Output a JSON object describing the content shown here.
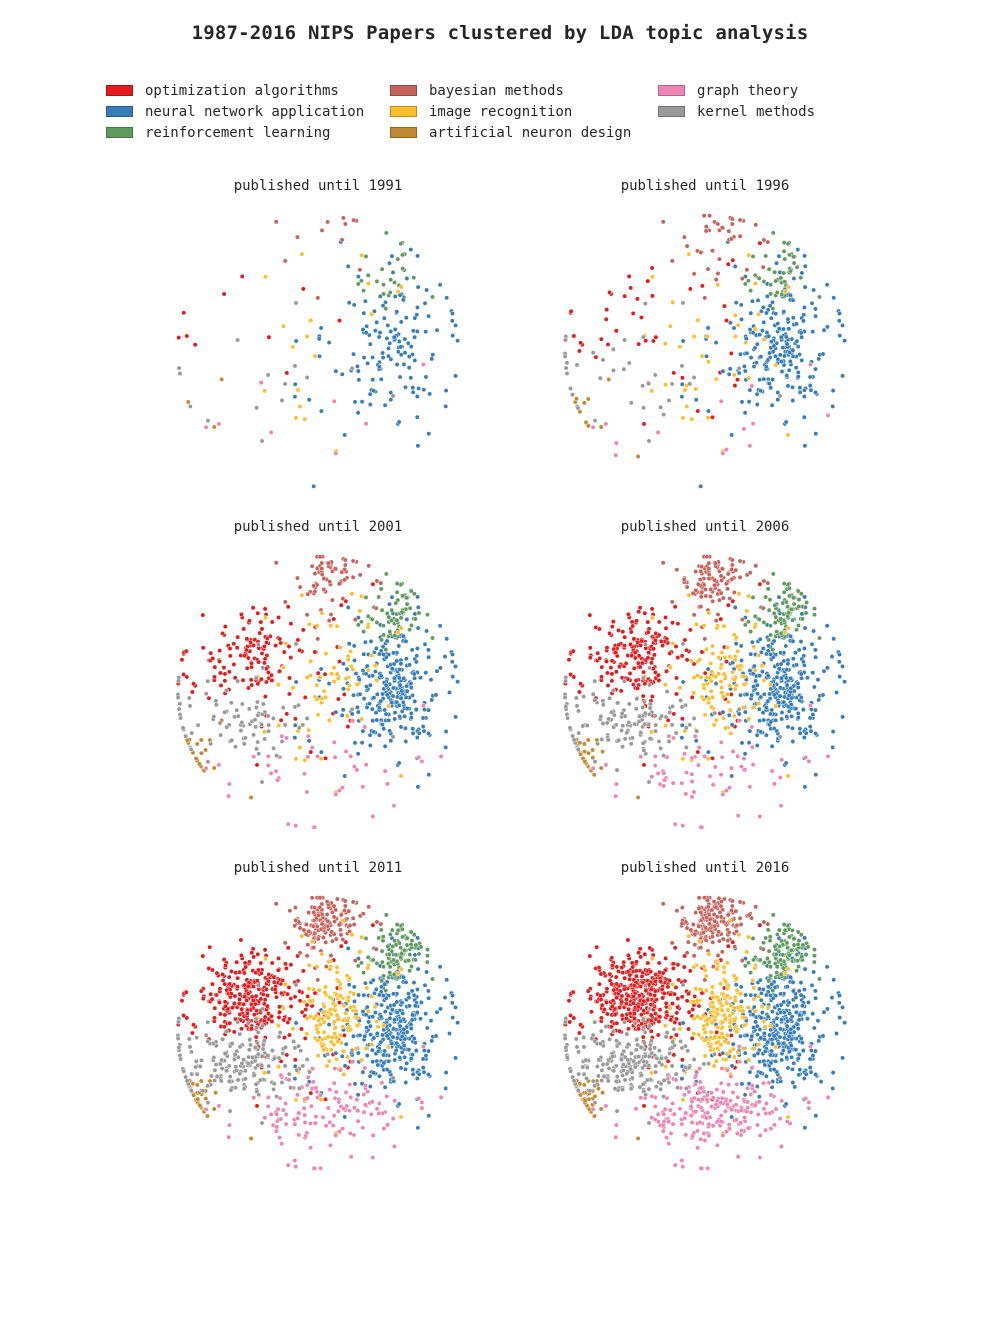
{
  "chart_data": {
    "type": "scatter",
    "title": "1987-2016 NIPS Papers clustered by LDA topic analysis",
    "legend_placement": "top",
    "grid": false,
    "axes_visible": false,
    "xlim": [
      -45,
      45
    ],
    "ylim": [
      -45,
      45
    ],
    "topics": [
      {
        "name": "optimization algorithms",
        "color": "#e41a1c",
        "center": [
          -19,
          11
        ],
        "spread": [
          7.5,
          6
        ],
        "counts": [
          10,
          45,
          160,
          220,
          320,
          420
        ]
      },
      {
        "name": "neural network application",
        "color": "#377eb8",
        "center": [
          22,
          2
        ],
        "spread": [
          6.5,
          9
        ],
        "counts": [
          150,
          240,
          300,
          330,
          360,
          390
        ]
      },
      {
        "name": "reinforcement learning",
        "color": "#5f9a5f",
        "center": [
          24,
          25
        ],
        "spread": [
          4,
          4
        ],
        "counts": [
          25,
          45,
          70,
          90,
          110,
          125
        ]
      },
      {
        "name": "bayesian methods",
        "color": "#c7625a",
        "center": [
          2,
          34
        ],
        "spread": [
          4.5,
          4
        ],
        "counts": [
          12,
          40,
          70,
          110,
          150,
          180
        ]
      },
      {
        "name": "image recognition",
        "color": "#fcbf2c",
        "center": [
          5,
          6
        ],
        "spread": [
          5,
          9
        ],
        "counts": [
          18,
          40,
          70,
          120,
          170,
          210
        ]
      },
      {
        "name": "artificial neuron design",
        "color": "#c08932",
        "center": [
          -37,
          -20
        ],
        "spread": [
          3,
          3
        ],
        "counts": [
          3,
          12,
          25,
          35,
          45,
          55
        ]
      },
      {
        "name": "graph theory",
        "color": "#ee84b3",
        "center": [
          2,
          -24
        ],
        "spread": [
          9,
          5
        ],
        "counts": [
          8,
          15,
          45,
          70,
          140,
          230
        ]
      },
      {
        "name": "kernel methods",
        "color": "#999999",
        "center": [
          -23,
          -9
        ],
        "spread": [
          9,
          5
        ],
        "counts": [
          15,
          40,
          90,
          140,
          190,
          240
        ]
      }
    ],
    "panels": [
      {
        "title": "published until 1991",
        "year": 1991
      },
      {
        "title": "published until 1996",
        "year": 1996
      },
      {
        "title": "published until 2001",
        "year": 2001
      },
      {
        "title": "published until 2006",
        "year": 2006
      },
      {
        "title": "published until 2011",
        "year": 2011
      },
      {
        "title": "published until 2016",
        "year": 2016
      }
    ]
  }
}
